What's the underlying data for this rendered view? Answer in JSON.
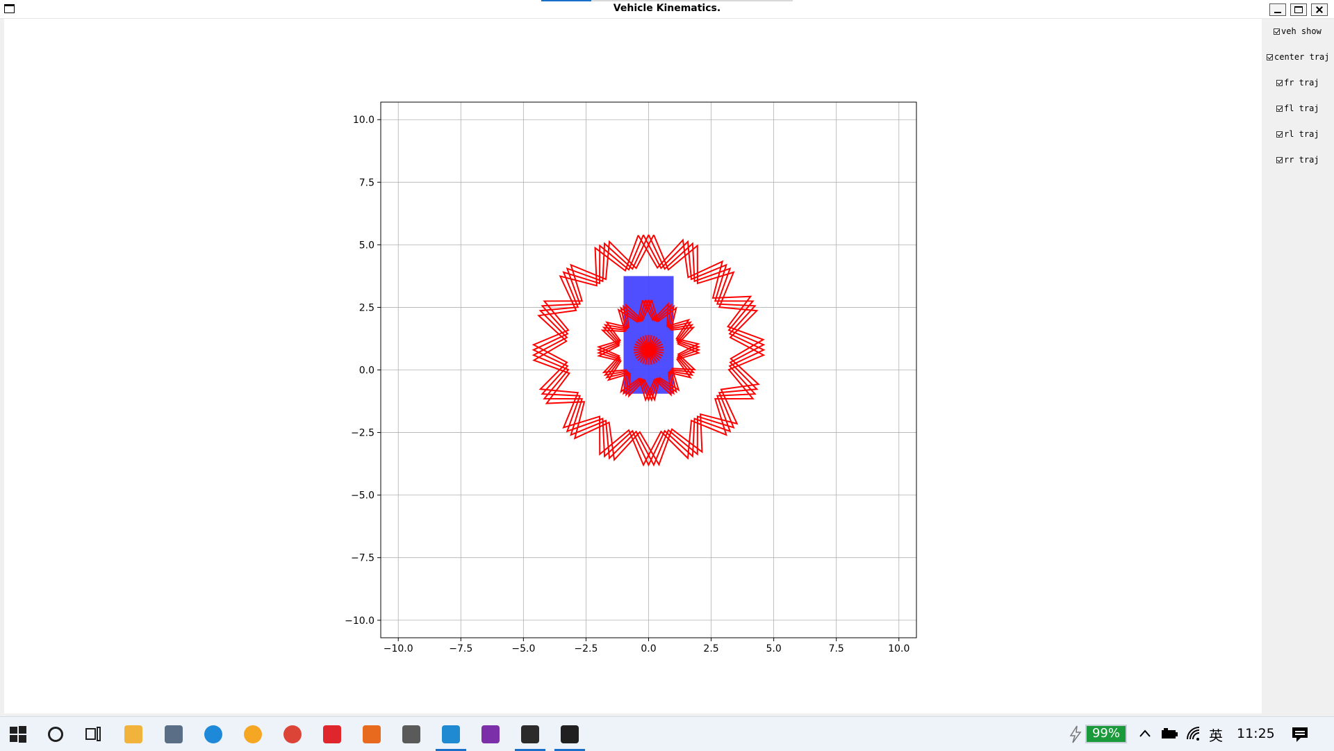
{
  "window": {
    "title": "Vehicle Kinematics.",
    "progress": 0.2
  },
  "side_panel": {
    "checkboxes": [
      {
        "label": "veh show",
        "checked": true
      },
      {
        "label": "center traj",
        "checked": true
      },
      {
        "label": "fr traj",
        "checked": true
      },
      {
        "label": "fl traj",
        "checked": true
      },
      {
        "label": "rl traj",
        "checked": true
      },
      {
        "label": "rr traj",
        "checked": true
      }
    ]
  },
  "chart_data": {
    "type": "line",
    "title": "",
    "xlabel": "",
    "ylabel": "",
    "xlim": [
      -10.7,
      10.7
    ],
    "ylim": [
      -10.7,
      10.7
    ],
    "grid": true,
    "x_ticks": [
      -10.0,
      -7.5,
      -5.0,
      -2.5,
      0.0,
      2.5,
      5.0,
      7.5,
      10.0
    ],
    "y_ticks": [
      -10.0,
      -7.5,
      -5.0,
      -2.5,
      0.0,
      2.5,
      5.0,
      7.5,
      10.0
    ],
    "x_tick_labels": [
      "−10.0",
      "−7.5",
      "−5.0",
      "−2.5",
      "0.0",
      "2.5",
      "5.0",
      "7.5",
      "10.0"
    ],
    "y_tick_labels": [
      "−10.0",
      "−7.5",
      "−5.0",
      "−2.5",
      "0.0",
      "2.5",
      "5.0",
      "7.5",
      "10.0"
    ],
    "vehicle": {
      "color": "#4646ff",
      "x_range": [
        -1.0,
        1.0
      ],
      "y_range": [
        -0.95,
        3.75
      ]
    },
    "trajectory_color": "#ff0000",
    "trajectories": {
      "outer_star": {
        "center": [
          0.0,
          0.8
        ],
        "inner_radius": 3.3,
        "outer_radius": 4.6,
        "points": 16
      },
      "inner_star": {
        "center": [
          0.0,
          0.8
        ],
        "inner_radius": 1.2,
        "outer_radius": 2.0,
        "points": 12
      },
      "center_burst": {
        "center": [
          0.0,
          0.8
        ],
        "radius": 0.6,
        "spokes": 16
      }
    }
  },
  "taskbar": {
    "battery": "99%",
    "ime": "英",
    "time": "11:25",
    "icons": [
      {
        "name": "windows-start-icon",
        "color": "#1f1f1f",
        "active": false
      },
      {
        "name": "search-icon",
        "color": "#1f1f1f",
        "active": false
      },
      {
        "name": "task-view-icon",
        "color": "#1f1f1f",
        "active": false
      },
      {
        "name": "file-explorer-icon",
        "color": "#f2b33d",
        "active": false
      },
      {
        "name": "calculator-icon",
        "color": "#5a6f86",
        "active": false
      },
      {
        "name": "edge-icon",
        "color": "#1e88d9",
        "active": false
      },
      {
        "name": "edge-beta-icon",
        "color": "#f5a623",
        "active": false
      },
      {
        "name": "chrome-icon",
        "color": "#db4437",
        "active": false
      },
      {
        "name": "youdao-icon",
        "color": "#e0262d",
        "active": false
      },
      {
        "name": "matlab-icon",
        "color": "#e86a1f",
        "active": false
      },
      {
        "name": "sequence-app-icon",
        "color": "#5a5a5a",
        "active": false
      },
      {
        "name": "vscode-icon",
        "color": "#1f8ad2",
        "active": true
      },
      {
        "name": "onenote-icon",
        "color": "#7b2fa8",
        "active": false
      },
      {
        "name": "terminal-icon",
        "color": "#2b2b2b",
        "active": true
      },
      {
        "name": "linux-tux-icon",
        "color": "#202020",
        "active": true
      }
    ]
  }
}
